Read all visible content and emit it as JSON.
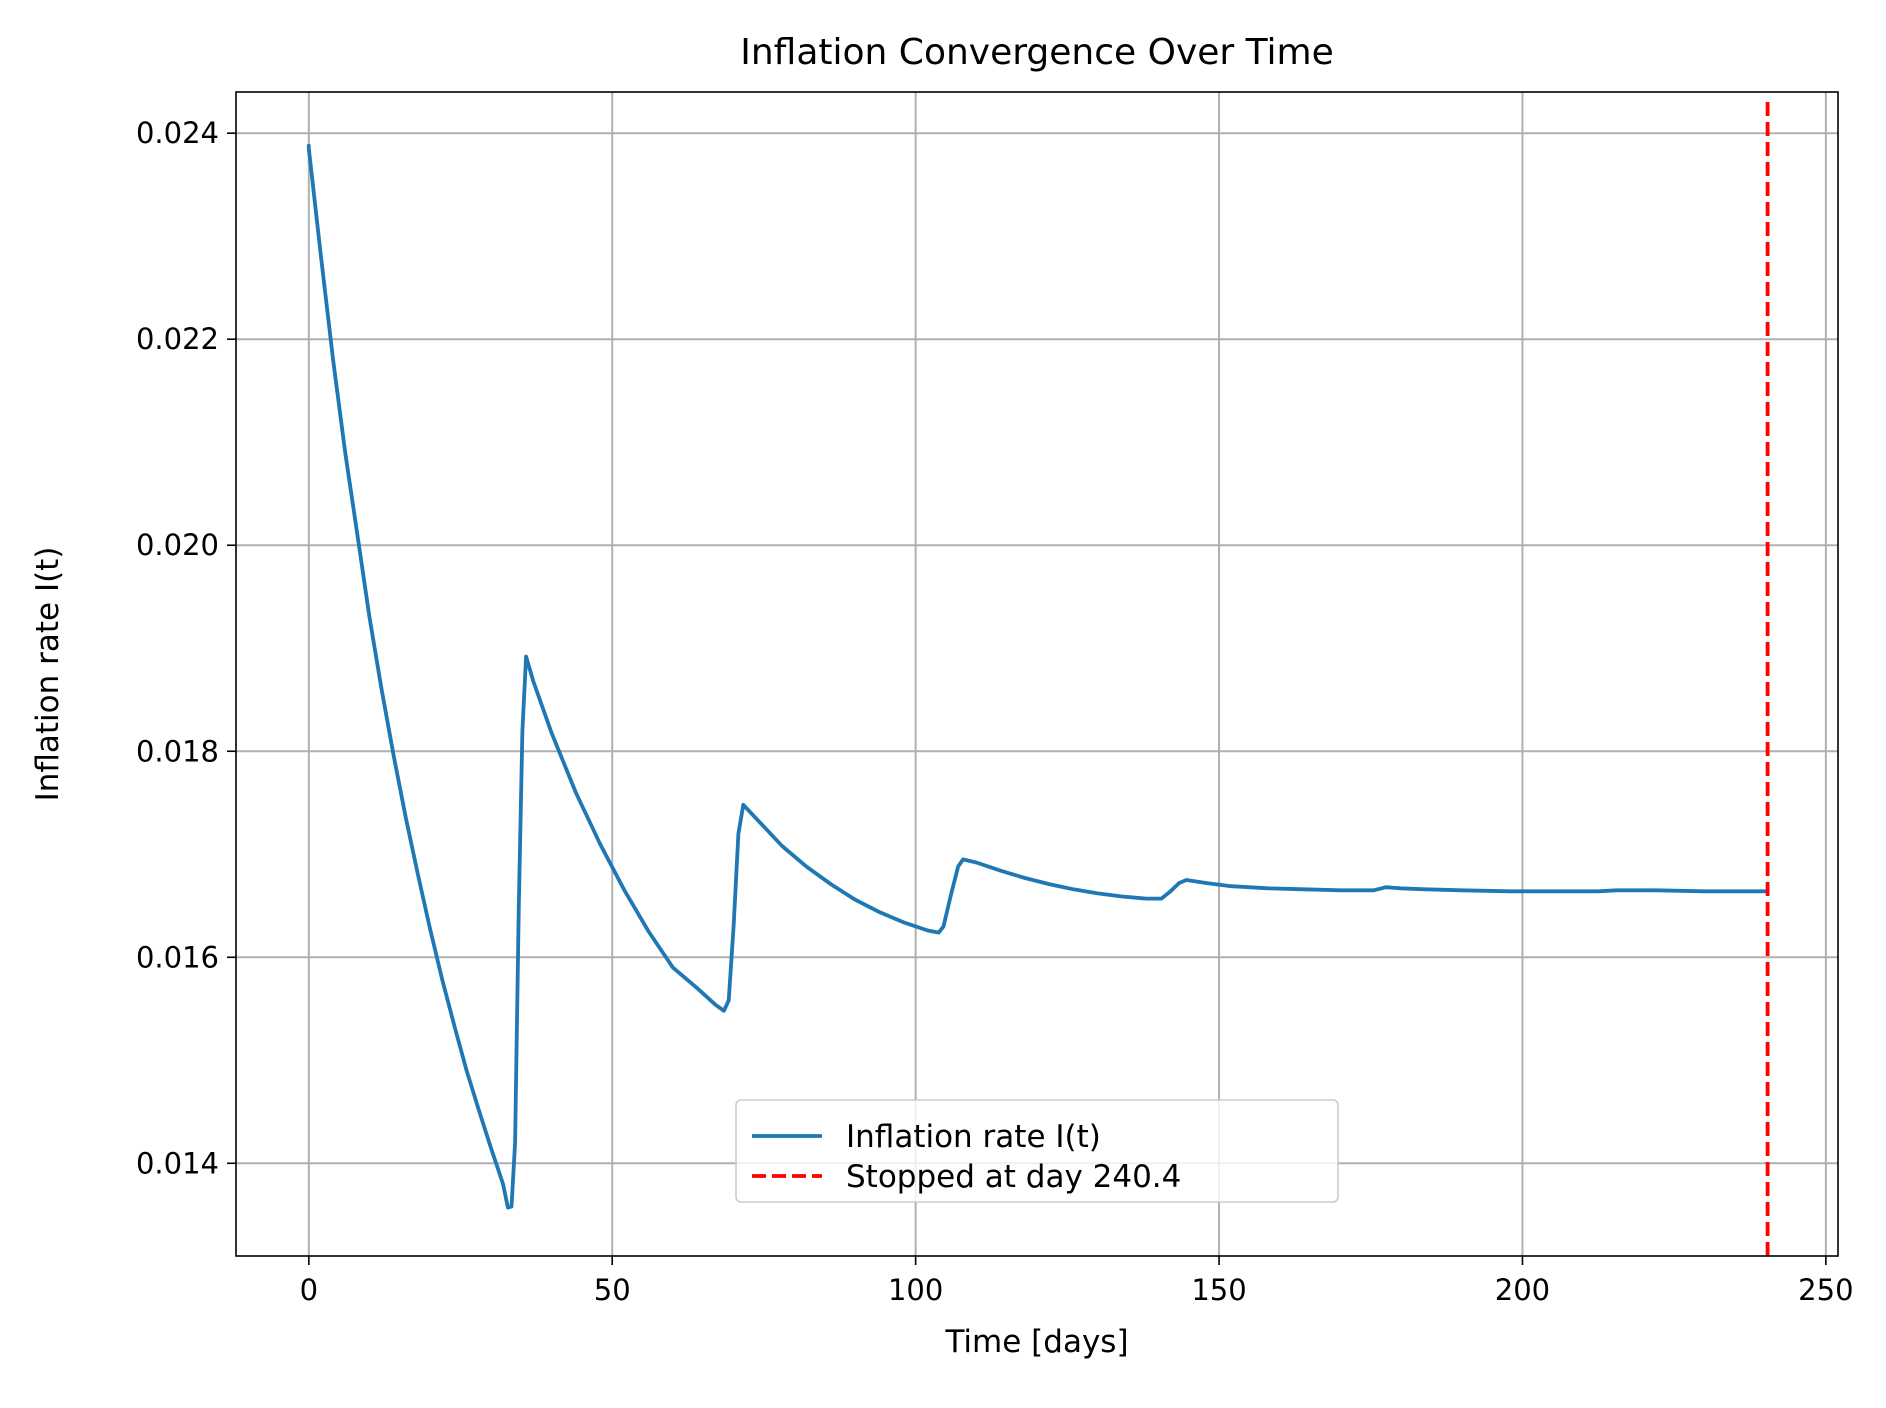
{
  "chart_data": {
    "type": "line",
    "title": "Inflation Convergence Over Time",
    "xlabel": "Time [days]",
    "ylabel": "Inflation rate I(t)",
    "xlim": [
      -12,
      252
    ],
    "ylim": [
      0.0131,
      0.0244
    ],
    "x_ticks": [
      0,
      50,
      100,
      150,
      200,
      250
    ],
    "x_tick_labels": [
      "0",
      "50",
      "100",
      "150",
      "200",
      "250"
    ],
    "y_ticks": [
      0.014,
      0.016,
      0.018,
      0.02,
      0.022,
      0.024
    ],
    "y_tick_labels": [
      "0.014",
      "0.016",
      "0.018",
      "0.020",
      "0.022",
      "0.024"
    ],
    "grid": true,
    "legend_position": "bottom-center",
    "series": [
      {
        "name": "Inflation rate I(t)",
        "color": "#1f77b4",
        "style": "solid",
        "points": [
          [
            0,
            0.02388
          ],
          [
            0,
            0.02385
          ],
          [
            2,
            0.0228
          ],
          [
            4,
            0.0218
          ],
          [
            6,
            0.0209
          ],
          [
            8,
            0.0201
          ],
          [
            10,
            0.0193
          ],
          [
            12,
            0.0186
          ],
          [
            14,
            0.01795
          ],
          [
            16,
            0.01735
          ],
          [
            18,
            0.0168
          ],
          [
            20,
            0.01627
          ],
          [
            22,
            0.01578
          ],
          [
            24,
            0.01533
          ],
          [
            26,
            0.0149
          ],
          [
            28,
            0.01452
          ],
          [
            30,
            0.01415
          ],
          [
            32,
            0.0138
          ],
          [
            32.8,
            0.01357
          ],
          [
            33.4,
            0.01358
          ],
          [
            34,
            0.0142
          ],
          [
            34.6,
            0.0165
          ],
          [
            35.2,
            0.0182
          ],
          [
            35.8,
            0.01892
          ],
          [
            37,
            0.01868
          ],
          [
            40,
            0.01818
          ],
          [
            44,
            0.0176
          ],
          [
            48,
            0.0171
          ],
          [
            52,
            0.01665
          ],
          [
            56,
            0.01625
          ],
          [
            60,
            0.0159
          ],
          [
            64,
            0.0157
          ],
          [
            67,
            0.01554
          ],
          [
            68.4,
            0.01548
          ],
          [
            69.2,
            0.01558
          ],
          [
            70,
            0.0163
          ],
          [
            70.8,
            0.0172
          ],
          [
            71.6,
            0.01748
          ],
          [
            74,
            0.01733
          ],
          [
            78,
            0.01708
          ],
          [
            82,
            0.01688
          ],
          [
            86,
            0.01671
          ],
          [
            90,
            0.01656
          ],
          [
            94,
            0.01644
          ],
          [
            98,
            0.01634
          ],
          [
            102,
            0.01626
          ],
          [
            103.8,
            0.01624
          ],
          [
            104.6,
            0.0163
          ],
          [
            105.8,
            0.0166
          ],
          [
            107,
            0.01688
          ],
          [
            107.8,
            0.01695
          ],
          [
            110,
            0.01692
          ],
          [
            114,
            0.01684
          ],
          [
            118,
            0.01677
          ],
          [
            122,
            0.01671
          ],
          [
            126,
            0.01666
          ],
          [
            130,
            0.01662
          ],
          [
            134,
            0.01659
          ],
          [
            138,
            0.01657
          ],
          [
            140.5,
            0.01657
          ],
          [
            142,
            0.01664
          ],
          [
            143.4,
            0.01672
          ],
          [
            144.6,
            0.01675
          ],
          [
            148,
            0.01672
          ],
          [
            152,
            0.01669
          ],
          [
            158,
            0.01667
          ],
          [
            164,
            0.01666
          ],
          [
            170,
            0.01665
          ],
          [
            175.5,
            0.01665
          ],
          [
            177.5,
            0.01668
          ],
          [
            179.8,
            0.01667
          ],
          [
            184,
            0.01666
          ],
          [
            190,
            0.01665
          ],
          [
            198,
            0.01664
          ],
          [
            206,
            0.01664
          ],
          [
            212.5,
            0.01664
          ],
          [
            215.5,
            0.01665
          ],
          [
            222,
            0.01665
          ],
          [
            230,
            0.01664
          ],
          [
            240.4,
            0.01664
          ]
        ]
      },
      {
        "name": "Stopped at day 240.4",
        "color": "#ff0000",
        "style": "dashed",
        "x_value": 240.4
      }
    ]
  }
}
